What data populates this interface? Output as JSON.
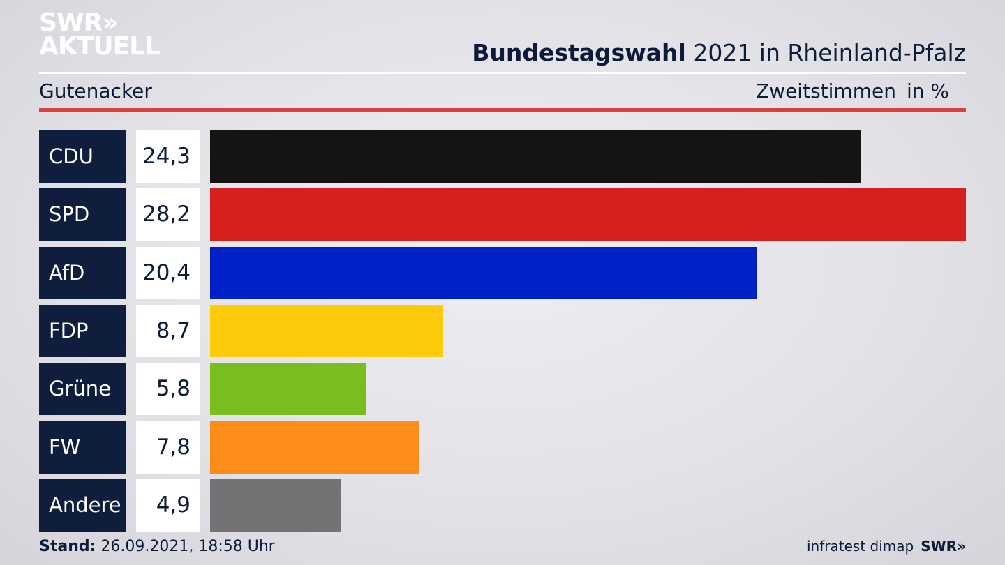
{
  "brand": {
    "logo_line1": "SWR»",
    "logo_line2": "AKTUELL",
    "footer_logo": "SWR»"
  },
  "header": {
    "title_bold": "Bundestagswahl",
    "title_rest": " 2021 in Rheinland-Pfalz",
    "region": "Gutenacker",
    "measure": "Zweitstimmen",
    "unit": "in %"
  },
  "colors": {
    "accent_rule": "#d7423f",
    "label_box": "#0f1e3d"
  },
  "chart_data": {
    "type": "bar",
    "orientation": "horizontal",
    "categories": [
      "CDU",
      "SPD",
      "AfD",
      "FDP",
      "Grüne",
      "FW",
      "Andere"
    ],
    "values": [
      24.3,
      28.2,
      20.4,
      8.7,
      5.8,
      7.8,
      4.9
    ],
    "value_labels": [
      "24,3",
      "28,2",
      "20,4",
      "8,7",
      "5,8",
      "7,8",
      "4,9"
    ],
    "bar_colors": [
      "#141414",
      "#d81f20",
      "#0021c8",
      "#fdcb0a",
      "#78be1e",
      "#fd8c19",
      "#737376"
    ],
    "xlim": [
      0,
      28.2
    ],
    "grid": false,
    "legend": "none"
  },
  "footer": {
    "stand_label": "Stand:",
    "stand_value": " 26.09.2021, 18:58 Uhr",
    "source": "infratest dimap"
  }
}
